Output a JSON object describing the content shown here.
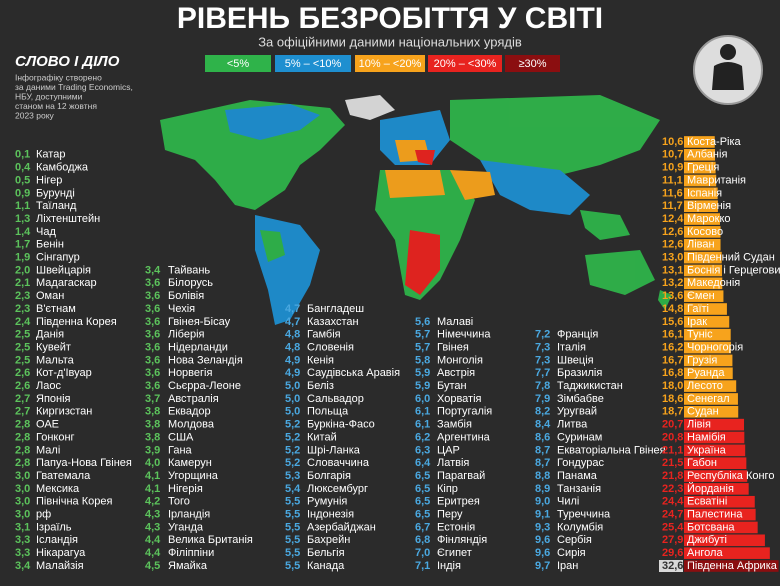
{
  "header": {
    "title": "РІВЕНЬ БЕЗРОБІТТЯ У СВІТІ",
    "subtitle": "За офіційними даними національних урядів"
  },
  "logo": "СЛОВО І ДІЛО",
  "note": [
    "Інфографіку створено",
    "за даними Trading Economics,",
    "НБУ, доступними",
    "станом на 12 жовтня",
    "2023 року"
  ],
  "legend": [
    {
      "label": "<5%",
      "color": "#2fb34a"
    },
    {
      "label": "5% – <10%",
      "color": "#1e8fd0"
    },
    {
      "label": "10% – <20%",
      "color": "#f7a31c"
    },
    {
      "label": "20% – <30%",
      "color": "#e8231f"
    },
    {
      "label": "≥30%",
      "color": "#8b0e10"
    }
  ],
  "columns": [
    {
      "color": "#5cc35c",
      "items": [
        {
          "label": "0,1",
          "name": "Катар"
        },
        {
          "label": "0,4",
          "name": "Камбоджа"
        },
        {
          "label": "0,5",
          "name": "Нігер"
        },
        {
          "label": "0,9",
          "name": "Бурунді"
        },
        {
          "label": "1,1",
          "name": "Таїланд"
        },
        {
          "label": "1,3",
          "name": "Ліхтенштейн"
        },
        {
          "label": "1,4",
          "name": "Чад"
        },
        {
          "label": "1,7",
          "name": "Бенін"
        },
        {
          "label": "1,9",
          "name": "Сінгапур"
        },
        {
          "label": "2,0",
          "name": "Швейцарія"
        },
        {
          "label": "2,1",
          "name": "Мадагаскар"
        },
        {
          "label": "2,3",
          "name": "Оман"
        },
        {
          "label": "2,3",
          "name": "В'єтнам"
        },
        {
          "label": "2,4",
          "name": "Південна Корея"
        },
        {
          "label": "2,5",
          "name": "Данія"
        },
        {
          "label": "2,5",
          "name": "Кувейт"
        },
        {
          "label": "2,5",
          "name": "Мальта"
        },
        {
          "label": "2,6",
          "name": "Кот-д'Івуар"
        },
        {
          "label": "2,6",
          "name": "Лаос"
        },
        {
          "label": "2,7",
          "name": "Японія"
        },
        {
          "label": "2,7",
          "name": "Киргизстан"
        },
        {
          "label": "2,8",
          "name": "ОАЕ"
        },
        {
          "label": "2,8",
          "name": "Гонконг"
        },
        {
          "label": "2,8",
          "name": "Малі"
        },
        {
          "label": "2,8",
          "name": "Папуа-Нова Гвінея"
        },
        {
          "label": "3,0",
          "name": "Гватемала"
        },
        {
          "label": "3,0",
          "name": "Мексика"
        },
        {
          "label": "3,0",
          "name": "Північна Корея"
        },
        {
          "label": "3,0",
          "name": "рф"
        },
        {
          "label": "3,1",
          "name": "Ізраїль"
        },
        {
          "label": "3,3",
          "name": "Ісландія"
        },
        {
          "label": "3,3",
          "name": "Нікарагуа"
        },
        {
          "label": "3,4",
          "name": "Малайзія"
        }
      ]
    },
    {
      "color": "#5cc35c",
      "items": [
        {
          "label": "3,4",
          "name": "Тайвань"
        },
        {
          "label": "3,6",
          "name": "Білорусь"
        },
        {
          "label": "3,6",
          "name": "Болівія"
        },
        {
          "label": "3,6",
          "name": "Чехія"
        },
        {
          "label": "3,6",
          "name": "Гвінея-Бісау"
        },
        {
          "label": "3,6",
          "name": "Ліберія"
        },
        {
          "label": "3,6",
          "name": "Нідерланди"
        },
        {
          "label": "3,6",
          "name": "Нова Зеландія"
        },
        {
          "label": "3,6",
          "name": "Норвегія"
        },
        {
          "label": "3,6",
          "name": "Сьєрра-Леоне"
        },
        {
          "label": "3,7",
          "name": "Австралія"
        },
        {
          "label": "3,8",
          "name": "Еквадор"
        },
        {
          "label": "3,8",
          "name": "Молдова"
        },
        {
          "label": "3,8",
          "name": "США"
        },
        {
          "label": "3,9",
          "name": "Гана"
        },
        {
          "label": "4,0",
          "name": "Камерун"
        },
        {
          "label": "4,1",
          "name": "Угорщина"
        },
        {
          "label": "4,1",
          "name": "Нігерія"
        },
        {
          "label": "4,2",
          "name": "Того"
        },
        {
          "label": "4,3",
          "name": "Ірландія"
        },
        {
          "label": "4,3",
          "name": "Уганда"
        },
        {
          "label": "4,4",
          "name": "Велика Британія"
        },
        {
          "label": "4,4",
          "name": "Філіппіни"
        },
        {
          "label": "4,5",
          "name": "Ямайка"
        }
      ]
    },
    {
      "color": "#4aa8e0",
      "items": [
        {
          "label": "4,7",
          "name": "Бангладеш"
        },
        {
          "label": "4,7",
          "name": "Казахстан"
        },
        {
          "label": "4,8",
          "name": "Гамбія"
        },
        {
          "label": "4,8",
          "name": "Словенія"
        },
        {
          "label": "4,9",
          "name": "Кенія"
        },
        {
          "label": "4,9",
          "name": "Саудівська Аравія"
        },
        {
          "label": "5,0",
          "name": "Беліз"
        },
        {
          "label": "5,0",
          "name": "Сальвадор"
        },
        {
          "label": "5,0",
          "name": "Польща"
        },
        {
          "label": "5,2",
          "name": "Буркіна-Фасо"
        },
        {
          "label": "5,2",
          "name": "Китай"
        },
        {
          "label": "5,2",
          "name": "Шрі-Ланка"
        },
        {
          "label": "5,2",
          "name": "Словаччина"
        },
        {
          "label": "5,3",
          "name": "Болгарія"
        },
        {
          "label": "5,4",
          "name": "Люксембург"
        },
        {
          "label": "5,5",
          "name": "Румунія"
        },
        {
          "label": "5,5",
          "name": "Індонезія"
        },
        {
          "label": "5,5",
          "name": "Азербайджан"
        },
        {
          "label": "5,5",
          "name": "Бахрейн"
        },
        {
          "label": "5,5",
          "name": "Бельгія"
        },
        {
          "label": "5,5",
          "name": "Канада"
        }
      ]
    },
    {
      "color": "#4aa8e0",
      "items": [
        {
          "label": "5,6",
          "name": "Малаві"
        },
        {
          "label": "5,7",
          "name": "Німеччина"
        },
        {
          "label": "5,7",
          "name": "Гвінея"
        },
        {
          "label": "5,8",
          "name": "Монголія"
        },
        {
          "label": "5,9",
          "name": "Австрія"
        },
        {
          "label": "5,9",
          "name": "Бутан"
        },
        {
          "label": "6,0",
          "name": "Хорватія"
        },
        {
          "label": "6,1",
          "name": "Португалія"
        },
        {
          "label": "6,1",
          "name": "Замбія"
        },
        {
          "label": "6,2",
          "name": "Аргентина"
        },
        {
          "label": "6,3",
          "name": "ЦАР"
        },
        {
          "label": "6,4",
          "name": "Латвія"
        },
        {
          "label": "6,5",
          "name": "Парагвай"
        },
        {
          "label": "6,5",
          "name": "Кіпр"
        },
        {
          "label": "6,5",
          "name": "Еритрея"
        },
        {
          "label": "6,5",
          "name": "Перу"
        },
        {
          "label": "6,7",
          "name": "Естонія"
        },
        {
          "label": "6,8",
          "name": "Фінляндія"
        },
        {
          "label": "7,0",
          "name": "Єгипет"
        },
        {
          "label": "7,1",
          "name": "Індія"
        }
      ]
    },
    {
      "color": "#4aa8e0",
      "items": [
        {
          "label": "7,2",
          "name": "Франція"
        },
        {
          "label": "7,3",
          "name": "Італія"
        },
        {
          "label": "7,3",
          "name": "Швеція"
        },
        {
          "label": "7,7",
          "name": "Бразилія"
        },
        {
          "label": "7,8",
          "name": "Таджикистан"
        },
        {
          "label": "7,9",
          "name": "Зімбабве"
        },
        {
          "label": "8,2",
          "name": "Уругвай"
        },
        {
          "label": "8,4",
          "name": "Литва"
        },
        {
          "label": "8,6",
          "name": "Суринам"
        },
        {
          "label": "8,7",
          "name": "Екваторіальна Гвінея"
        },
        {
          "label": "8,7",
          "name": "Гондурас"
        },
        {
          "label": "8,8",
          "name": "Панама"
        },
        {
          "label": "8,9",
          "name": "Танзанія"
        },
        {
          "label": "9,0",
          "name": "Чилі"
        },
        {
          "label": "9,1",
          "name": "Туреччина"
        },
        {
          "label": "9,3",
          "name": "Колумбія"
        },
        {
          "label": "9,6",
          "name": "Сербія"
        },
        {
          "label": "9,6",
          "name": "Сирія"
        },
        {
          "label": "9,7",
          "name": "Іран"
        }
      ]
    }
  ],
  "bars": {
    "groups": [
      {
        "color": "#f7a31c",
        "items": [
          {
            "value": 10.6,
            "label": "10,6",
            "name": "Коста-Ріка"
          },
          {
            "value": 10.7,
            "label": "10,7",
            "name": "Албанія"
          },
          {
            "value": 10.9,
            "label": "10,9",
            "name": "Греція"
          },
          {
            "value": 11.1,
            "label": "11,1",
            "name": "Мавританія"
          },
          {
            "value": 11.6,
            "label": "11,6",
            "name": "Іспанія"
          },
          {
            "value": 11.7,
            "label": "11,7",
            "name": "Вірменія"
          },
          {
            "value": 12.4,
            "label": "12,4",
            "name": "Марокко"
          },
          {
            "value": 12.6,
            "label": "12,6",
            "name": "Косово"
          },
          {
            "value": 12.6,
            "label": "12,6",
            "name": "Ліван"
          },
          {
            "value": 13.0,
            "label": "13,0",
            "name": "Південний Судан"
          },
          {
            "value": 13.1,
            "label": "13,1",
            "name": "Боснія і Герцеговина"
          },
          {
            "value": 13.2,
            "label": "13,2",
            "name": "Македонія"
          },
          {
            "value": 13.6,
            "label": "13,6",
            "name": "Ємен"
          },
          {
            "value": 14.8,
            "label": "14,8",
            "name": "Гаїті"
          },
          {
            "value": 15.6,
            "label": "15,6",
            "name": "Ірак"
          },
          {
            "value": 16.1,
            "label": "16,1",
            "name": "Туніс"
          },
          {
            "value": 16.2,
            "label": "16,2",
            "name": "Чорногорія"
          },
          {
            "value": 16.7,
            "label": "16,7",
            "name": "Грузія"
          },
          {
            "value": 16.8,
            "label": "16,8",
            "name": "Руанда"
          },
          {
            "value": 18.0,
            "label": "18,0",
            "name": "Лесото"
          },
          {
            "value": 18.6,
            "label": "18,6",
            "name": "Сенегал"
          },
          {
            "value": 18.7,
            "label": "18,7",
            "name": "Судан"
          }
        ]
      },
      {
        "color": "#e8231f",
        "items": [
          {
            "value": 20.7,
            "label": "20,7",
            "name": "Лівія"
          },
          {
            "value": 20.8,
            "label": "20,8",
            "name": "Намібія"
          },
          {
            "value": 21.1,
            "label": "21,1",
            "name": "Україна"
          },
          {
            "value": 21.5,
            "label": "21,5",
            "name": "Габон"
          },
          {
            "value": 21.8,
            "label": "21,8",
            "name": "Республіка Конго"
          },
          {
            "value": 22.3,
            "label": "22,3",
            "name": "Йорданія"
          },
          {
            "value": 24.4,
            "label": "24,4",
            "name": "Есватіні"
          },
          {
            "value": 24.7,
            "label": "24,7",
            "name": "Палестина"
          },
          {
            "value": 25.4,
            "label": "25,4",
            "name": "Ботсвана"
          },
          {
            "value": 27.9,
            "label": "27,9",
            "name": "Джибуті"
          },
          {
            "value": 29.6,
            "label": "29,6",
            "name": "Ангола"
          }
        ]
      },
      {
        "color": "#8b0e10",
        "number_box": "#d9d9d9",
        "items": [
          {
            "value": 32.6,
            "label": "32,6",
            "name": "Південна Африка"
          }
        ]
      }
    ]
  }
}
